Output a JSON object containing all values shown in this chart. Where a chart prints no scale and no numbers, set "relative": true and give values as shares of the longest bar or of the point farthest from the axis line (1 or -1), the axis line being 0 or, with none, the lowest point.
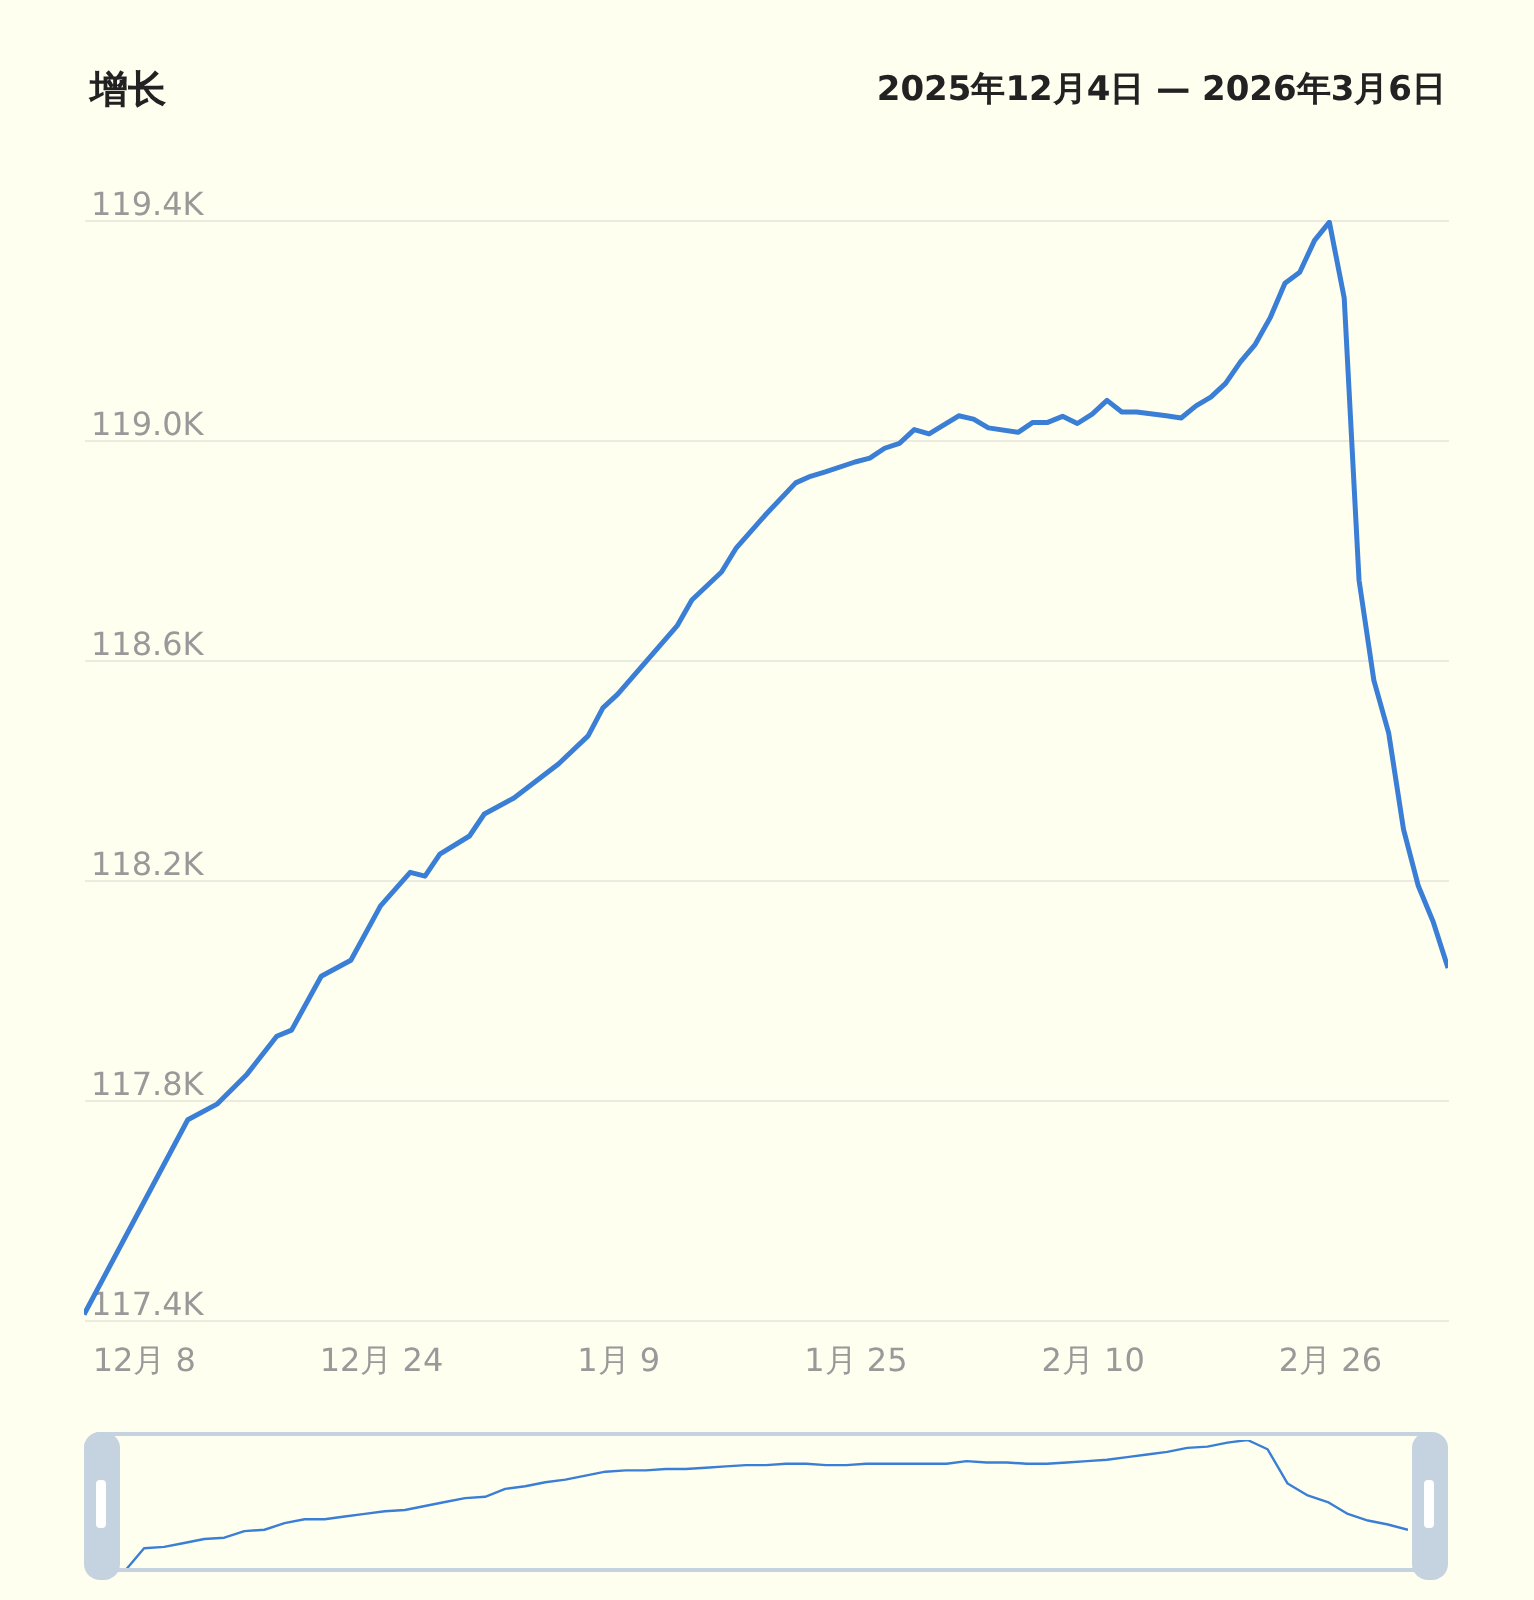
{
  "chart_data": [
    {
      "type": "line",
      "title": "增长",
      "subtitle": "2025年12月4日 — 2026年3月6日",
      "x": [
        "2025-12-04",
        "2025-12-11",
        "2025-12-13",
        "2025-12-15",
        "2025-12-17",
        "2025-12-18",
        "2025-12-20",
        "2025-12-22",
        "2025-12-24",
        "2025-12-26",
        "2025-12-27",
        "2025-12-28",
        "2025-12-30",
        "2025-12-31",
        "2026-01-02",
        "2026-01-05",
        "2026-01-07",
        "2026-01-08",
        "2026-01-09",
        "2026-01-13",
        "2026-01-14",
        "2026-01-16",
        "2026-01-17",
        "2026-01-19",
        "2026-01-21",
        "2026-01-22",
        "2026-01-23",
        "2026-01-25",
        "2026-01-26",
        "2026-01-27",
        "2026-01-28",
        "2026-01-29",
        "2026-01-30",
        "2026-02-01",
        "2026-02-02",
        "2026-02-03",
        "2026-02-05",
        "2026-02-06",
        "2026-02-07",
        "2026-02-08",
        "2026-02-09",
        "2026-02-10",
        "2026-02-11",
        "2026-02-12",
        "2026-02-13",
        "2026-02-15",
        "2026-02-16",
        "2026-02-17",
        "2026-02-18",
        "2026-02-19",
        "2026-02-20",
        "2026-02-21",
        "2026-02-22",
        "2026-02-23",
        "2026-02-24",
        "2026-02-25",
        "2026-02-26",
        "2026-02-27",
        "2026-02-28",
        "2026-03-01",
        "2026-03-02",
        "2026-03-03",
        "2026-03-04",
        "2026-03-05",
        "2026-03-06"
      ],
      "series": [
        {
          "color": "#3a7fd5",
          "values": [
            117410,
            117764,
            117793,
            117847,
            117916,
            117927,
            118025,
            118054,
            118153,
            118214,
            118207,
            118247,
            118280,
            118320,
            118349,
            118411,
            118462,
            118513,
            118538,
            118662,
            118709,
            118760,
            118804,
            118865,
            118922,
            118934,
            118942,
            118960,
            118967,
            118985,
            118994,
            119019,
            119011,
            119044,
            119038,
            119022,
            119014,
            119032,
            119032,
            119043,
            119030,
            119047,
            119072,
            119051,
            119051,
            119044,
            119040,
            119062,
            119078,
            119103,
            119142,
            119174,
            119222,
            119285,
            119305,
            119363,
            119396,
            119258,
            118745,
            118563,
            118467,
            118292,
            118189,
            118124,
            118040
          ]
        }
      ],
      "xlim": [
        "2025-12-04",
        "2026-03-06"
      ],
      "xticks": [
        {
          "value": "2025-12-08",
          "label": "12月 8"
        },
        {
          "value": "2025-12-24",
          "label": "12月 24"
        },
        {
          "value": "2026-01-09",
          "label": "1月 9"
        },
        {
          "value": "2026-01-25",
          "label": "1月 25"
        },
        {
          "value": "2026-02-10",
          "label": "2月 10"
        },
        {
          "value": "2026-02-26",
          "label": "2月 26"
        }
      ],
      "ylim": [
        117400,
        119400
      ],
      "yticks": [
        {
          "value": 117400,
          "label": "117.4K"
        },
        {
          "value": 117800,
          "label": "117.8K"
        },
        {
          "value": 118200,
          "label": "118.2K"
        },
        {
          "value": 118600,
          "label": "118.6K"
        },
        {
          "value": 119000,
          "label": "119.0K"
        },
        {
          "value": 119400,
          "label": "119.4K"
        }
      ],
      "grid": "y"
    },
    {
      "type": "line",
      "relative": true,
      "categories": [
        null,
        null,
        null,
        null,
        null,
        null,
        null,
        null,
        null,
        null,
        null,
        null,
        null,
        null,
        null,
        null,
        null,
        null,
        null,
        null,
        null,
        null,
        null,
        null,
        null,
        null,
        null,
        null,
        null,
        null,
        null,
        null,
        null,
        null,
        null,
        null,
        null,
        null,
        null,
        null,
        null,
        null,
        null,
        null,
        null,
        null,
        null,
        null,
        null,
        null,
        null,
        null,
        null,
        null,
        null,
        null,
        null,
        null,
        null,
        null,
        null,
        null,
        null,
        null,
        null
      ],
      "series": [
        {
          "color": "#3a7fd5",
          "values": [
            0,
            0.18,
            0.19,
            0.22,
            0.25,
            0.26,
            0.31,
            0.32,
            0.37,
            0.4,
            0.4,
            0.42,
            0.44,
            0.46,
            0.47,
            0.5,
            0.53,
            0.56,
            0.57,
            0.63,
            0.65,
            0.68,
            0.7,
            0.73,
            0.76,
            0.77,
            0.77,
            0.78,
            0.78,
            0.79,
            0.8,
            0.81,
            0.81,
            0.82,
            0.82,
            0.81,
            0.81,
            0.82,
            0.82,
            0.82,
            0.82,
            0.82,
            0.84,
            0.83,
            0.83,
            0.82,
            0.82,
            0.83,
            0.84,
            0.85,
            0.87,
            0.89,
            0.91,
            0.94,
            0.95,
            0.98,
            1,
            0.93,
            0.67,
            0.58,
            0.53,
            0.44,
            0.39,
            0.36,
            0.32
          ]
        }
      ]
    }
  ]
}
